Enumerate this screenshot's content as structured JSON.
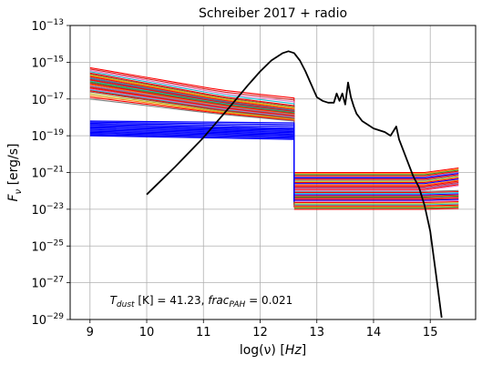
{
  "chart_data": {
    "type": "line",
    "title": "Schreiber 2017 + radio",
    "xlabel": "log(ν) [Hz]",
    "ylabel": "F_ν [erg/s]",
    "xlim": [
      8.65,
      15.8
    ],
    "ylim_log10": [
      -29,
      -13
    ],
    "y_scale": "log",
    "grid": true,
    "x_ticks": [
      9,
      10,
      11,
      12,
      13,
      14,
      15
    ],
    "y_ticks_exponents": [
      -29,
      -27,
      -25,
      -23,
      -21,
      -19,
      -17,
      -15,
      -13
    ],
    "y_tick_base": "10",
    "annotation": "T_dust [K] = 41.23, frac_PAH = 0.021",
    "colors": {
      "model": "#000000",
      "radio_blue": "#0000ff",
      "uv_red": "#ff0000",
      "palette": [
        "#1f77b4",
        "#ff7f0e",
        "#2ca02c",
        "#d62728",
        "#9467bd",
        "#8c564b",
        "#e377c2",
        "#7f7f7f",
        "#bcbd22",
        "#17becf"
      ]
    },
    "series": [
      {
        "role": "model SED",
        "x": [
          10.0,
          10.5,
          11.0,
          11.5,
          11.8,
          12.0,
          12.2,
          12.4,
          12.5,
          12.6,
          12.7,
          12.8,
          12.9,
          13.0,
          13.1,
          13.2,
          13.3,
          13.35,
          13.4,
          13.45,
          13.5,
          13.55,
          13.6,
          13.65,
          13.7,
          13.8,
          13.9,
          14.0,
          14.1,
          14.2,
          14.3,
          14.4,
          14.45,
          14.5,
          14.6,
          14.7,
          14.8,
          14.9,
          15.0,
          15.1,
          15.2
        ],
        "log10_y": [
          -22.2,
          -20.7,
          -19.1,
          -17.3,
          -16.2,
          -15.5,
          -14.9,
          -14.5,
          -14.4,
          -14.5,
          -14.9,
          -15.5,
          -16.2,
          -16.9,
          -17.1,
          -17.2,
          -17.2,
          -16.7,
          -17.1,
          -16.7,
          -17.3,
          -16.1,
          -16.9,
          -17.4,
          -17.8,
          -18.2,
          -18.4,
          -18.6,
          -18.7,
          -18.8,
          -19.0,
          -18.5,
          -19.2,
          -19.6,
          -20.4,
          -21.2,
          -21.8,
          -22.8,
          -24.2,
          -26.5,
          -28.9
        ]
      }
    ],
    "radio_component_family": {
      "count": 40,
      "x_start": 9.0,
      "x_end": 12.6,
      "upper_lines_log10_y_at_x9": [
        -15.3,
        -15.6,
        -15.8,
        -16.0,
        -16.2,
        -16.4,
        -16.6,
        -17.0
      ],
      "upper_lines_log10_y_at_x12_6": [
        -17.2,
        -17.6,
        -17.8,
        -17.9,
        -18.0,
        -18.1,
        -18.2,
        -18.3
      ],
      "blue_lines_log10_y_at_x9": [
        -18.2,
        -18.4,
        -18.6,
        -18.8,
        -19.0
      ],
      "blue_lines_log10_y_at_x12_6": [
        -18.3,
        -18.6,
        -18.8,
        -19.0,
        -19.2
      ]
    },
    "uv_component_family": {
      "x_start": 12.6,
      "x_end": 15.5,
      "log10_y_range": [
        -23.0,
        -21.0
      ],
      "x_uptick_start": 14.9,
      "log10_y_plateau": [
        -21.5,
        -22.2
      ]
    }
  }
}
